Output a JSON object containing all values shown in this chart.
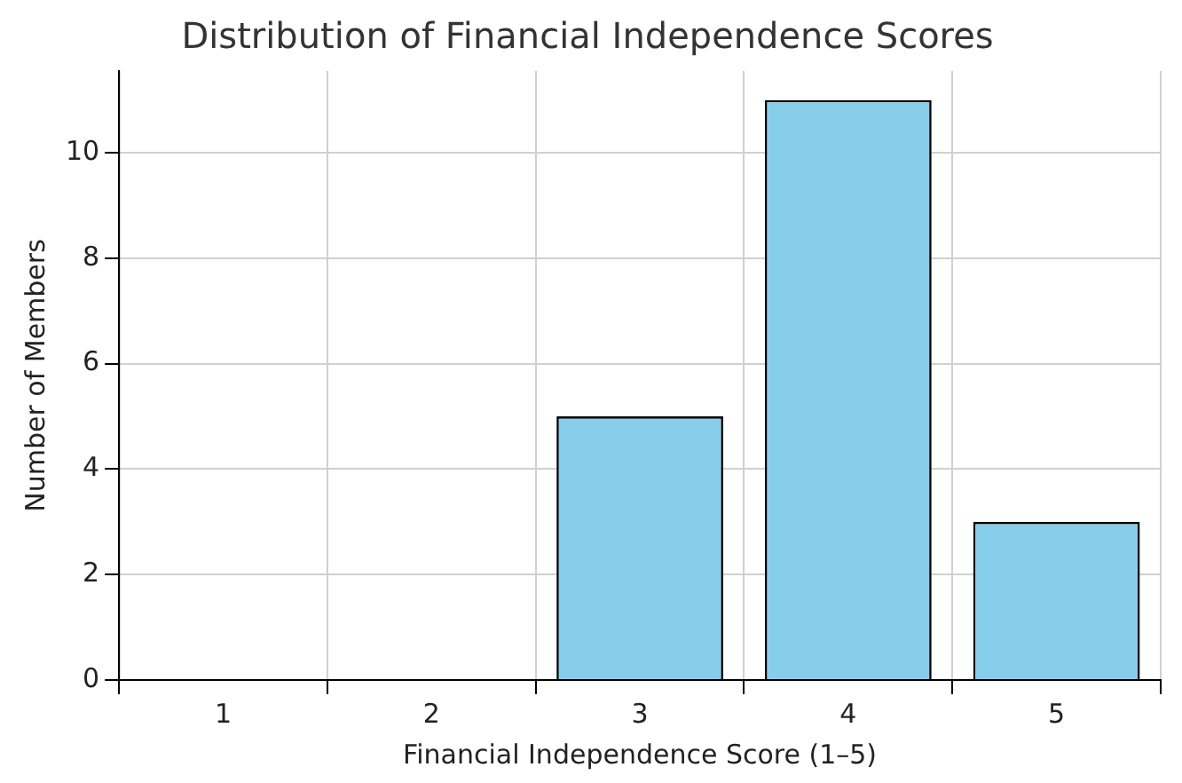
{
  "chart_data": {
    "type": "bar",
    "title": "Distribution of Financial Independence Scores",
    "xlabel": "Financial Independence Score (1–5)",
    "ylabel": "Number of Members",
    "categories": [
      "1",
      "2",
      "3",
      "4",
      "5"
    ],
    "values": [
      0,
      0,
      5,
      11,
      3
    ],
    "color": "#87ceeb",
    "ylim": [
      0,
      11.55
    ],
    "yticks": [
      0,
      2,
      4,
      6,
      8,
      10
    ],
    "grid": true,
    "legend": false
  }
}
